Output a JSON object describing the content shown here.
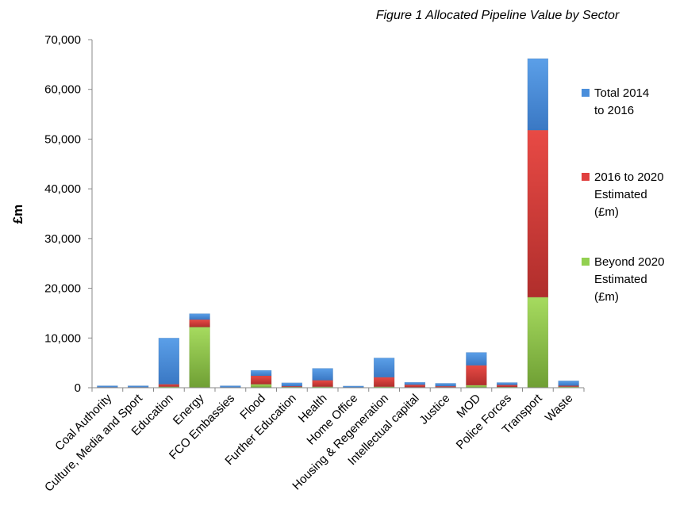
{
  "chart_data": {
    "type": "bar",
    "stacked": true,
    "title": "Figure 1 Allocated Pipeline Value by Sector",
    "xlabel": "",
    "ylabel": "£m",
    "ylim": [
      0,
      70000
    ],
    "yticks": [
      0,
      10000,
      20000,
      30000,
      40000,
      50000,
      60000,
      70000
    ],
    "ytick_labels": [
      "0",
      "10,000",
      "20,000",
      "30,000",
      "40,000",
      "50,000",
      "60,000",
      "70,000"
    ],
    "grid": false,
    "legend_position": "right",
    "categories": [
      "Coal Authority",
      "Culture, Media and Sport",
      "Education",
      "Energy",
      "FCO Embassies",
      "Flood",
      "Further Education",
      "Health",
      "Home Office",
      "Housing & Regeneration",
      "Intellectual capital",
      "Justice",
      "MOD",
      "Police Forces",
      "Transport",
      "Waste"
    ],
    "series": [
      {
        "name": "Beyond 2020 Estimated (£m)",
        "legend_lines": [
          "Beyond 2020",
          "Estimated",
          "(£m)"
        ],
        "color": "#92D050",
        "values": [
          50,
          50,
          200,
          12200,
          0,
          700,
          150,
          200,
          0,
          200,
          100,
          100,
          500,
          150,
          18200,
          200
        ]
      },
      {
        "name": "2016 to 2020 Estimated (£m)",
        "legend_lines": [
          "2016 to 2020",
          "Estimated",
          "(£m)"
        ],
        "color": "#E0403F",
        "values": [
          50,
          50,
          500,
          1500,
          50,
          1700,
          150,
          1300,
          50,
          1900,
          500,
          200,
          4000,
          400,
          33600,
          200
        ]
      },
      {
        "name": "Total 2014 to 2016",
        "legend_lines": [
          "Total 2014",
          "to 2016"
        ],
        "color": "#4A8EDB",
        "values": [
          300,
          300,
          9300,
          1200,
          350,
          1100,
          700,
          2400,
          300,
          3900,
          500,
          600,
          2600,
          500,
          14400,
          1000
        ]
      }
    ]
  }
}
